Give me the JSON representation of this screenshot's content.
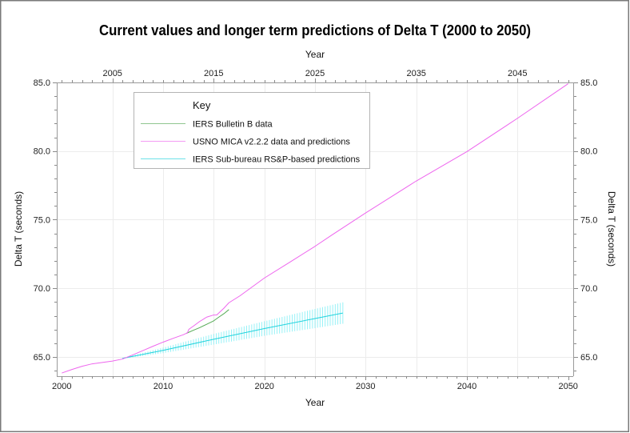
{
  "chart_data": {
    "type": "line",
    "title": "Current values and longer term predictions of Delta T (2000 to 2050)",
    "xlabel_top": "Year",
    "xlabel_bottom": "Year",
    "ylabel_left": "Delta T (seconds)",
    "ylabel_right": "Delta T (seconds)",
    "xlim": [
      1999.5,
      2050.5
    ],
    "ylim": [
      63.6,
      85.0
    ],
    "grid": true,
    "grid_step": {
      "x": 5,
      "y": 5
    },
    "x_ticks_bottom": {
      "values": [
        2000,
        2010,
        2020,
        2030,
        2040,
        2050
      ],
      "labels": [
        "2000",
        "2010",
        "2020",
        "2030",
        "2040",
        "2050"
      ],
      "minor_step": 1
    },
    "x_ticks_top": {
      "values": [
        2005,
        2015,
        2025,
        2035,
        2045
      ],
      "labels": [
        "2005",
        "2015",
        "2025",
        "2035",
        "2045"
      ],
      "minor_step": 1
    },
    "y_ticks": {
      "values": [
        65,
        70,
        75,
        80,
        85
      ],
      "labels": [
        "65.0",
        "70.0",
        "75.0",
        "80.0",
        "85.0"
      ],
      "minor_step": 1
    },
    "legend": {
      "title": "Key",
      "placement": "top-left"
    },
    "series": [
      {
        "name": "IERS Bulletin B data",
        "color": "#55aa55",
        "points": [
          [
            2012.3,
            66.72
          ],
          [
            2013.0,
            66.95
          ],
          [
            2013.6,
            67.13
          ],
          [
            2014.3,
            67.38
          ],
          [
            2014.95,
            67.61
          ],
          [
            2015.5,
            67.9
          ],
          [
            2016.0,
            68.15
          ],
          [
            2016.5,
            68.45
          ]
        ]
      },
      {
        "name": "USNO MICA v2.2.2 data and predictions",
        "color": "#ee66ee",
        "points": [
          [
            2000.0,
            63.83
          ],
          [
            2001.0,
            64.09
          ],
          [
            2002.0,
            64.32
          ],
          [
            2003.0,
            64.5
          ],
          [
            2004.0,
            64.6
          ],
          [
            2005.0,
            64.7
          ],
          [
            2006.0,
            64.85
          ],
          [
            2007.0,
            65.15
          ],
          [
            2008.0,
            65.46
          ],
          [
            2009.0,
            65.78
          ],
          [
            2010.0,
            66.08
          ],
          [
            2011.0,
            66.36
          ],
          [
            2012.0,
            66.62
          ],
          [
            2012.4,
            66.76
          ],
          [
            2012.55,
            67.02
          ],
          [
            2013.0,
            67.25
          ],
          [
            2013.6,
            67.58
          ],
          [
            2014.3,
            67.9
          ],
          [
            2014.95,
            68.05
          ],
          [
            2015.3,
            68.06
          ],
          [
            2016.0,
            68.55
          ],
          [
            2016.5,
            68.95
          ],
          [
            2017.6,
            69.46
          ],
          [
            2020.0,
            70.75
          ],
          [
            2022.5,
            71.9
          ],
          [
            2025.0,
            73.06
          ],
          [
            2026.6,
            73.85
          ],
          [
            2030.0,
            75.49
          ],
          [
            2035.0,
            77.82
          ],
          [
            2040.0,
            79.96
          ],
          [
            2045.0,
            82.39
          ],
          [
            2050.0,
            84.91
          ]
        ]
      },
      {
        "name": "IERS Sub-bureau RS&P-based predictions",
        "color": "#22d3dd",
        "error_bar_color": "#7ff0f6",
        "error_bar_step_years": 0.25,
        "points_with_error": [
          [
            2006.0,
            64.9,
            0.03
          ],
          [
            2010.0,
            65.48,
            0.2
          ],
          [
            2015.0,
            66.29,
            0.39
          ],
          [
            2020.0,
            67.07,
            0.53
          ],
          [
            2025.0,
            67.8,
            0.7
          ],
          [
            2027.75,
            68.2,
            0.78
          ]
        ]
      }
    ]
  },
  "figure": {
    "border_color": "#7a7a7a",
    "background": "#ffffff"
  }
}
